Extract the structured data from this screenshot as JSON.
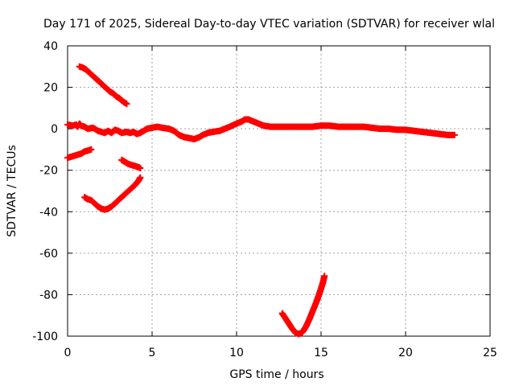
{
  "chart_data": {
    "type": "scatter",
    "title": "Day 171 of 2025, Sidereal Day-to-day VTEC variation (SDTVAR) for receiver wlal",
    "xlabel": "GPS time / hours",
    "ylabel": "SDTVAR / TECUs",
    "xlim": [
      0,
      25
    ],
    "ylim": [
      -100,
      40
    ],
    "xticks": [
      0,
      5,
      10,
      15,
      20,
      25
    ],
    "yticks": [
      -100,
      -80,
      -60,
      -40,
      -20,
      0,
      20,
      40
    ],
    "grid": true,
    "marker": "+",
    "marker_color": "#ff0000",
    "series": [
      {
        "values": [
          [
            0.0,
            2.0
          ],
          [
            0.3,
            1.5
          ],
          [
            0.5,
            2.0
          ],
          [
            0.6,
            1.0
          ],
          [
            0.7,
            2.5
          ],
          [
            0.8,
            1.5
          ],
          [
            1.0,
            1.0
          ],
          [
            1.2,
            0.0
          ],
          [
            1.5,
            0.5
          ],
          [
            1.8,
            -1.0
          ],
          [
            2.0,
            -1.5
          ],
          [
            2.2,
            -2.0
          ],
          [
            2.4,
            -1.0
          ],
          [
            2.6,
            -2.0
          ],
          [
            2.8,
            -0.5
          ],
          [
            3.0,
            -1.0
          ],
          [
            3.2,
            -2.0
          ],
          [
            3.5,
            -1.5
          ],
          [
            3.7,
            -2.0
          ],
          [
            3.9,
            -1.5
          ],
          [
            4.1,
            -2.5
          ],
          [
            4.3,
            -2.0
          ],
          [
            4.5,
            -1.0
          ],
          [
            4.7,
            0.0
          ],
          [
            5.0,
            0.5
          ],
          [
            5.3,
            1.0
          ],
          [
            5.6,
            0.5
          ],
          [
            6.0,
            0.0
          ],
          [
            6.3,
            -1.0
          ],
          [
            6.6,
            -3.0
          ],
          [
            6.9,
            -4.0
          ],
          [
            7.2,
            -4.5
          ],
          [
            7.5,
            -5.0
          ],
          [
            7.8,
            -4.0
          ],
          [
            8.0,
            -3.0
          ],
          [
            8.3,
            -2.0
          ],
          [
            8.6,
            -1.5
          ],
          [
            9.0,
            -1.0
          ],
          [
            9.3,
            0.0
          ],
          [
            9.6,
            1.0
          ],
          [
            10.0,
            2.5
          ],
          [
            10.3,
            3.5
          ],
          [
            10.5,
            4.5
          ],
          [
            10.7,
            4.5
          ],
          [
            11.0,
            3.5
          ],
          [
            11.3,
            2.5
          ],
          [
            11.6,
            1.5
          ],
          [
            12.0,
            1.0
          ],
          [
            12.5,
            1.0
          ],
          [
            13.0,
            1.0
          ],
          [
            13.5,
            1.0
          ],
          [
            14.0,
            1.0
          ],
          [
            14.5,
            1.0
          ],
          [
            15.0,
            1.5
          ],
          [
            15.5,
            1.5
          ],
          [
            16.0,
            1.0
          ],
          [
            16.5,
            1.0
          ],
          [
            17.0,
            1.0
          ],
          [
            17.5,
            1.0
          ],
          [
            18.0,
            0.5
          ],
          [
            18.5,
            0.0
          ],
          [
            19.0,
            0.0
          ],
          [
            19.5,
            -0.5
          ],
          [
            20.0,
            -0.5
          ],
          [
            20.5,
            -1.0
          ],
          [
            21.0,
            -1.5
          ],
          [
            21.5,
            -2.0
          ],
          [
            22.0,
            -2.5
          ],
          [
            22.5,
            -3.0
          ],
          [
            22.9,
            -3.0
          ]
        ]
      },
      {
        "values": [
          [
            0.0,
            -14.0
          ],
          [
            0.2,
            -13.5
          ],
          [
            0.4,
            -13.0
          ],
          [
            0.6,
            -12.5
          ],
          [
            0.8,
            -12.0
          ],
          [
            1.0,
            -11.0
          ],
          [
            1.2,
            -10.5
          ],
          [
            1.4,
            -10.0
          ]
        ]
      },
      {
        "values": [
          [
            0.7,
            30.0
          ],
          [
            0.9,
            29.5
          ],
          [
            1.1,
            28.5
          ],
          [
            1.3,
            27.0
          ],
          [
            1.5,
            25.5
          ],
          [
            1.7,
            24.0
          ],
          [
            1.9,
            22.5
          ],
          [
            2.1,
            21.0
          ],
          [
            2.3,
            19.5
          ],
          [
            2.5,
            18.0
          ],
          [
            2.7,
            17.0
          ],
          [
            2.9,
            15.5
          ],
          [
            3.1,
            14.5
          ],
          [
            3.3,
            13.0
          ],
          [
            3.5,
            12.0
          ]
        ]
      },
      {
        "values": [
          [
            1.0,
            -33.0
          ],
          [
            1.2,
            -34.0
          ],
          [
            1.4,
            -34.5
          ],
          [
            1.6,
            -36.0
          ],
          [
            1.8,
            -37.5
          ],
          [
            2.0,
            -38.5
          ],
          [
            2.2,
            -39.0
          ],
          [
            2.4,
            -38.5
          ],
          [
            2.6,
            -37.5
          ],
          [
            2.8,
            -36.0
          ],
          [
            3.0,
            -34.5
          ],
          [
            3.2,
            -33.0
          ],
          [
            3.4,
            -31.5
          ],
          [
            3.6,
            -30.0
          ],
          [
            3.8,
            -28.5
          ],
          [
            4.0,
            -27.0
          ],
          [
            4.2,
            -25.0
          ],
          [
            4.3,
            -23.5
          ]
        ]
      },
      {
        "values": [
          [
            3.2,
            -15.0
          ],
          [
            3.4,
            -16.0
          ],
          [
            3.6,
            -17.0
          ],
          [
            3.8,
            -17.5
          ],
          [
            4.0,
            -18.0
          ],
          [
            4.2,
            -18.5
          ],
          [
            4.3,
            -19.0
          ]
        ]
      },
      {
        "values": [
          [
            12.7,
            -89.0
          ],
          [
            12.9,
            -91.5
          ],
          [
            13.1,
            -94.0
          ],
          [
            13.3,
            -96.5
          ],
          [
            13.5,
            -98.5
          ],
          [
            13.7,
            -99.0
          ],
          [
            13.9,
            -98.0
          ],
          [
            14.1,
            -95.5
          ],
          [
            14.3,
            -92.0
          ],
          [
            14.5,
            -88.0
          ],
          [
            14.7,
            -84.0
          ],
          [
            14.9,
            -79.5
          ],
          [
            15.1,
            -74.5
          ],
          [
            15.2,
            -71.0
          ]
        ]
      }
    ]
  }
}
